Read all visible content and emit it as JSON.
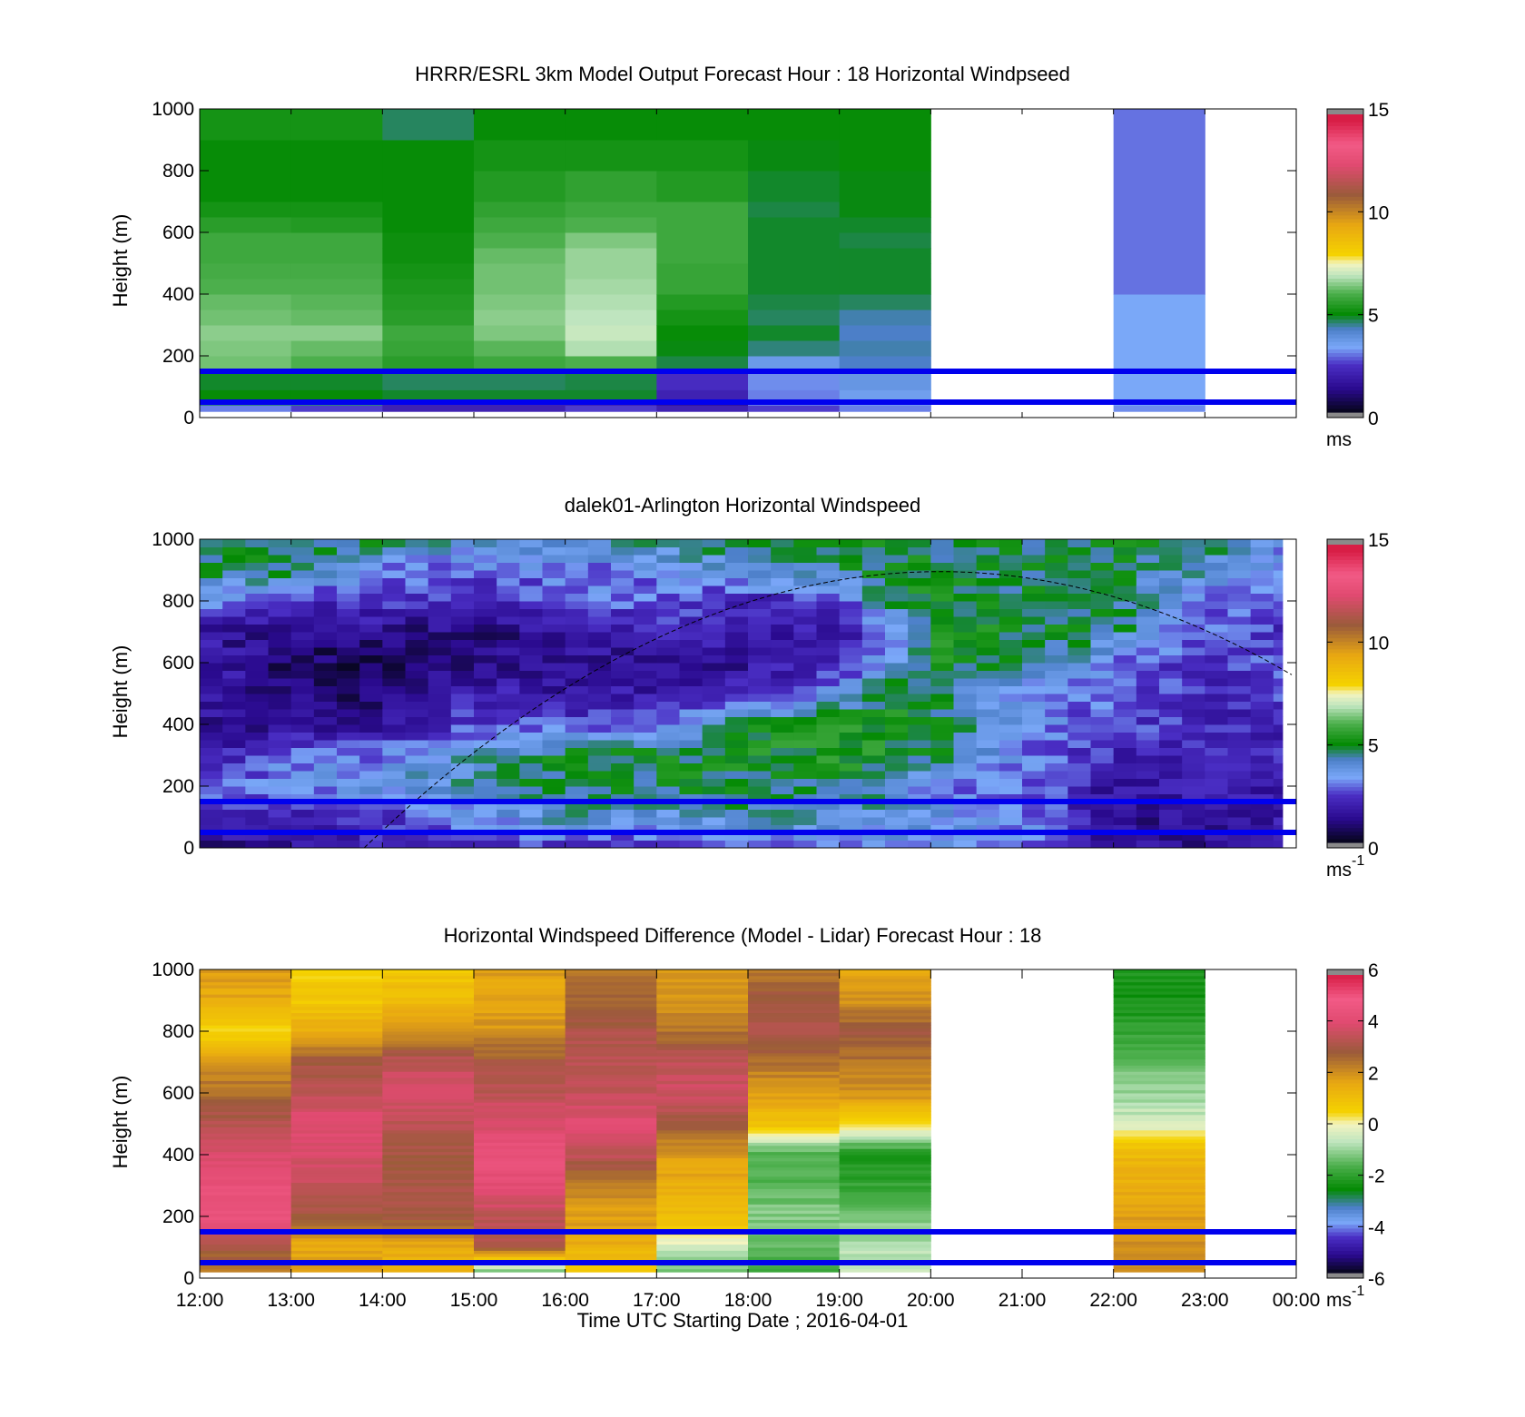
{
  "figure": {
    "xaxis_title": "Time UTC  Starting Date ; 2016-04-01",
    "x_tick_labels": [
      "12:00",
      "13:00",
      "14:00",
      "15:00",
      "16:00",
      "17:00",
      "18:00",
      "19:00",
      "20:00",
      "21:00",
      "22:00",
      "23:00",
      "00:00"
    ]
  },
  "chart_data": [
    {
      "type": "heatmap",
      "title": "HRRR/ESRL 3km Model Output   Forecast Hour : 18 Horizontal Windpseed",
      "ylabel": "Height (m)",
      "xlim_hours_utc": [
        12,
        24
      ],
      "ylim": [
        0,
        1000
      ],
      "y_ticks": [
        "0",
        "200",
        "400",
        "600",
        "800",
        "1000"
      ],
      "colorbar": {
        "range": [
          0,
          15
        ],
        "ticks": [
          "0",
          "5",
          "10",
          "15"
        ],
        "unit": "ms",
        "unit_sup": ""
      },
      "reference_lines_m": [
        50,
        150
      ],
      "columns": [
        {
          "hour": 12,
          "z_top": [
            40,
            60,
            90,
            150,
            200,
            250,
            300,
            350,
            400,
            450,
            500,
            550,
            600,
            650,
            700,
            800,
            900,
            1000
          ],
          "values": [
            3,
            4.5,
            5,
            4.8,
            6.3,
            6.4,
            6.5,
            6.3,
            6.2,
            6.0,
            5.9,
            5.8,
            5.8,
            5.5,
            5.2,
            5.0,
            5.0,
            5.2
          ]
        },
        {
          "hour": 13,
          "z_top": [
            40,
            60,
            90,
            150,
            200,
            250,
            300,
            350,
            400,
            450,
            500,
            550,
            600,
            650,
            700,
            800,
            900,
            1000
          ],
          "values": [
            2.5,
            4.5,
            5,
            4.8,
            6.0,
            6.2,
            6.5,
            6.2,
            6.1,
            6.0,
            5.9,
            5.8,
            5.8,
            5.4,
            5.2,
            5.0,
            5.0,
            5.2
          ]
        },
        {
          "hour": 14,
          "z_top": [
            40,
            60,
            90,
            150,
            200,
            250,
            300,
            350,
            400,
            450,
            500,
            550,
            600,
            650,
            700,
            800,
            900,
            1000
          ],
          "values": [
            2,
            2,
            4.8,
            4.6,
            5.5,
            5.7,
            5.8,
            5.5,
            5.4,
            5.3,
            5.2,
            5.1,
            5.1,
            5.0,
            5.0,
            5.0,
            5.0,
            4.6
          ]
        },
        {
          "hour": 15,
          "z_top": [
            40,
            60,
            90,
            150,
            200,
            250,
            300,
            350,
            400,
            450,
            500,
            550,
            600,
            650,
            700,
            800,
            900,
            1000
          ],
          "values": [
            2,
            2,
            4.8,
            4.6,
            5.8,
            6.1,
            6.4,
            6.5,
            6.4,
            6.3,
            6.3,
            6.2,
            6.0,
            5.8,
            5.6,
            5.4,
            5.2,
            5.0
          ]
        },
        {
          "hour": 16,
          "z_top": [
            40,
            60,
            90,
            150,
            200,
            250,
            300,
            350,
            400,
            450,
            500,
            550,
            600,
            650,
            700,
            800,
            900,
            1000
          ],
          "values": [
            2.5,
            2,
            4.8,
            4.7,
            6.0,
            6.8,
            7.0,
            6.9,
            6.8,
            6.7,
            6.6,
            6.6,
            6.4,
            6.0,
            5.8,
            5.6,
            5.2,
            5.0
          ]
        },
        {
          "hour": 17,
          "z_top": [
            40,
            60,
            90,
            150,
            200,
            250,
            300,
            350,
            400,
            450,
            500,
            550,
            600,
            650,
            700,
            800,
            900,
            1000
          ],
          "values": [
            2,
            1.5,
            2,
            2.3,
            4.7,
            4.9,
            5.0,
            5.2,
            5.4,
            5.7,
            5.7,
            5.8,
            5.8,
            5.8,
            5.8,
            5.4,
            5.2,
            5.0
          ]
        },
        {
          "hour": 18,
          "z_top": [
            40,
            60,
            90,
            150,
            200,
            250,
            300,
            350,
            400,
            450,
            500,
            550,
            600,
            650,
            700,
            800,
            900,
            1000
          ],
          "values": [
            2.5,
            3,
            3,
            3.1,
            3.6,
            4.5,
            4.8,
            4.6,
            4.7,
            4.8,
            4.8,
            4.8,
            4.8,
            4.8,
            4.7,
            4.8,
            4.9,
            5.0
          ]
        },
        {
          "hour": 19,
          "z_top": [
            40,
            60,
            90,
            150,
            200,
            250,
            300,
            350,
            400,
            450,
            500,
            550,
            600,
            650,
            700,
            800,
            900,
            1000
          ],
          "values": [
            3,
            3.2,
            3.5,
            3.7,
            4.2,
            4.3,
            4.2,
            4.3,
            4.6,
            4.8,
            4.8,
            4.8,
            4.7,
            4.8,
            4.9,
            4.9,
            5.0,
            5.0
          ]
        },
        {
          "hour": 22,
          "z_top": [
            40,
            400,
            1000
          ],
          "values": [
            3.1,
            3.3,
            2.9
          ]
        }
      ]
    },
    {
      "type": "heatmap",
      "title": "dalek01-Arlington  Horizontal Windspeed",
      "ylabel": "Height (m)",
      "xlim_hours_utc": [
        12,
        24
      ],
      "ylim": [
        0,
        1000
      ],
      "y_ticks": [
        "0",
        "200",
        "400",
        "600",
        "800",
        "1000"
      ],
      "colorbar": {
        "range": [
          0,
          15
        ],
        "ticks": [
          "0",
          "5",
          "10",
          "15"
        ],
        "unit": "ms",
        "unit_sup": "-1"
      },
      "reference_lines_m": [
        50,
        150
      ],
      "data_end_hour_utc": 23.85,
      "overlay_curve": {
        "style": "dashed",
        "peak_hour_utc": 20.1,
        "peak_height_m": 895,
        "zero_hour_utc": 13.8,
        "end_height_m": 500
      },
      "profiles": [
        {
          "hour": 12.0,
          "z": [
            0,
            100,
            200,
            300,
            400,
            500,
            600,
            700,
            800,
            900,
            1000
          ],
          "v": [
            1.0,
            2.0,
            2.8,
            1.5,
            1.5,
            1.8,
            2.0,
            1.6,
            3.6,
            4.6,
            4.8
          ]
        },
        {
          "hour": 13.0,
          "z": [
            0,
            100,
            200,
            300,
            400,
            500,
            600,
            700,
            800,
            900,
            1000
          ],
          "v": [
            1.5,
            2.0,
            3.0,
            3.2,
            1.2,
            1.0,
            0.8,
            1.2,
            2.2,
            4.6,
            5.0
          ]
        },
        {
          "hour": 14.0,
          "z": [
            0,
            100,
            200,
            300,
            400,
            500,
            600,
            700,
            800,
            900,
            1000
          ],
          "v": [
            2.0,
            2.3,
            3.8,
            3.0,
            1.5,
            0.8,
            0.6,
            1.2,
            2.5,
            3.0,
            4.8
          ]
        },
        {
          "hour": 15.0,
          "z": [
            0,
            100,
            200,
            300,
            400,
            500,
            600,
            700,
            800,
            900,
            1000
          ],
          "v": [
            2.2,
            3.2,
            4.3,
            4.0,
            2.5,
            2.0,
            1.2,
            1.0,
            2.0,
            2.8,
            3.8
          ]
        },
        {
          "hour": 16.0,
          "z": [
            0,
            100,
            200,
            300,
            400,
            500,
            600,
            700,
            800,
            900,
            1000
          ],
          "v": [
            2.4,
            4.2,
            4.8,
            4.8,
            2.6,
            1.5,
            1.2,
            1.5,
            2.8,
            3.0,
            4.0
          ]
        },
        {
          "hour": 17.0,
          "z": [
            0,
            100,
            200,
            300,
            400,
            500,
            600,
            700,
            800,
            900,
            1000
          ],
          "v": [
            2.2,
            3.5,
            4.6,
            4.9,
            3.0,
            1.8,
            1.5,
            2.0,
            2.8,
            3.0,
            4.5
          ]
        },
        {
          "hour": 18.0,
          "z": [
            0,
            100,
            200,
            300,
            400,
            500,
            600,
            700,
            800,
            900,
            1000
          ],
          "v": [
            3.0,
            4.5,
            4.8,
            5.0,
            5.0,
            2.0,
            1.5,
            1.8,
            2.0,
            4.0,
            5.0
          ]
        },
        {
          "hour": 19.0,
          "z": [
            0,
            100,
            200,
            300,
            400,
            500,
            600,
            700,
            800,
            900,
            1000
          ],
          "v": [
            3.0,
            3.8,
            4.5,
            5.2,
            5.2,
            3.5,
            2.0,
            1.8,
            2.5,
            4.6,
            4.8
          ]
        },
        {
          "hour": 19.5,
          "z": [
            0,
            100,
            200,
            300,
            400,
            500,
            600,
            700,
            800,
            900,
            1000
          ],
          "v": [
            3.2,
            3.6,
            4.8,
            5.0,
            5.2,
            4.8,
            3.5,
            2.5,
            4.8,
            5.0,
            4.8
          ]
        },
        {
          "hour": 20.0,
          "z": [
            0,
            100,
            200,
            300,
            400,
            500,
            600,
            700,
            800,
            900,
            1000
          ],
          "v": [
            3.5,
            3.8,
            3.0,
            4.8,
            5.0,
            5.0,
            5.0,
            5.0,
            4.9,
            4.8,
            4.7
          ]
        },
        {
          "hour": 21.0,
          "z": [
            0,
            100,
            200,
            300,
            400,
            500,
            600,
            700,
            800,
            900,
            1000
          ],
          "v": [
            3.2,
            3.2,
            3.0,
            3.0,
            3.5,
            3.2,
            4.8,
            4.9,
            4.8,
            4.6,
            4.8
          ]
        },
        {
          "hour": 22.0,
          "z": [
            0,
            100,
            200,
            300,
            400,
            500,
            600,
            700,
            800,
            900,
            1000
          ],
          "v": [
            1.5,
            1.2,
            1.5,
            2.0,
            2.5,
            2.8,
            3.0,
            4.6,
            4.8,
            4.6,
            4.8
          ]
        },
        {
          "hour": 23.0,
          "z": [
            0,
            100,
            200,
            300,
            400,
            500,
            600,
            700,
            800,
            900,
            1000
          ],
          "v": [
            1.2,
            1.5,
            1.8,
            2.0,
            2.2,
            2.0,
            2.2,
            2.6,
            3.0,
            4.0,
            4.8
          ]
        },
        {
          "hour": 23.85,
          "z": [
            0,
            100,
            200,
            300,
            400,
            500,
            600,
            700,
            800,
            900,
            1000
          ],
          "v": [
            1.6,
            1.8,
            1.8,
            2.2,
            2.0,
            2.4,
            2.6,
            2.2,
            3.0,
            3.2,
            3.4
          ]
        }
      ]
    },
    {
      "type": "heatmap",
      "title": "Horizontal Windspeed Difference (Model - Lidar) Forecast Hour : 18",
      "ylabel": "Height (m)",
      "xlim_hours_utc": [
        12,
        24
      ],
      "ylim": [
        0,
        1000
      ],
      "y_ticks": [
        "0",
        "200",
        "400",
        "600",
        "800",
        "1000"
      ],
      "colorbar": {
        "range": [
          -6,
          6
        ],
        "ticks": [
          "-6",
          "-4",
          "-2",
          "0",
          "2",
          "4",
          "6"
        ],
        "unit": "ms",
        "unit_sup": "-1"
      },
      "reference_lines_m": [
        50,
        150
      ],
      "profiles": [
        {
          "hour": 12,
          "z": [
            20,
            100,
            200,
            300,
            400,
            500,
            600,
            700,
            800,
            900,
            1000
          ],
          "v": [
            2.5,
            3.0,
            4.6,
            4.4,
            4.0,
            3.4,
            2.6,
            2.0,
            0.5,
            1.6,
            1.8
          ]
        },
        {
          "hour": 13,
          "z": [
            20,
            100,
            200,
            300,
            400,
            500,
            600,
            700,
            800,
            900,
            1000
          ],
          "v": [
            2.0,
            1.5,
            3.0,
            3.5,
            4.0,
            4.2,
            3.5,
            3.0,
            1.5,
            0.8,
            0.6
          ]
        },
        {
          "hour": 14,
          "z": [
            20,
            100,
            200,
            300,
            400,
            500,
            600,
            700,
            800,
            900,
            1000
          ],
          "v": [
            1.5,
            1.5,
            3.0,
            3.2,
            3.0,
            3.4,
            4.0,
            3.5,
            2.0,
            1.2,
            0.8
          ]
        },
        {
          "hour": 15,
          "z": [
            20,
            100,
            200,
            300,
            400,
            500,
            600,
            700,
            800,
            900,
            1000
          ],
          "v": [
            -1.5,
            3.0,
            3.5,
            4.2,
            4.5,
            4.0,
            3.5,
            3.0,
            2.0,
            1.6,
            1.8
          ]
        },
        {
          "hour": 16,
          "z": [
            20,
            100,
            200,
            300,
            400,
            500,
            600,
            700,
            800,
            900,
            1000
          ],
          "v": [
            0.5,
            1.5,
            1.8,
            2.2,
            3.5,
            4.2,
            3.6,
            3.4,
            3.2,
            2.8,
            2.4
          ]
        },
        {
          "hour": 17,
          "z": [
            20,
            100,
            200,
            300,
            400,
            500,
            600,
            700,
            800,
            900,
            1000
          ],
          "v": [
            -1.5,
            -0.5,
            1.2,
            1.5,
            1.8,
            3.0,
            3.8,
            3.5,
            2.5,
            2.0,
            2.0
          ]
        },
        {
          "hour": 18,
          "z": [
            20,
            100,
            200,
            300,
            400,
            500,
            600,
            700,
            800,
            900,
            1000
          ],
          "v": [
            -2.0,
            -1.5,
            -1.2,
            -1.5,
            -1.8,
            1.0,
            1.8,
            2.5,
            3.4,
            3.0,
            2.5
          ]
        },
        {
          "hour": 19,
          "z": [
            20,
            100,
            200,
            300,
            400,
            500,
            600,
            700,
            800,
            900,
            1000
          ],
          "v": [
            -0.5,
            -0.8,
            -1.2,
            -2.0,
            -2.5,
            0.5,
            2.0,
            2.5,
            3.0,
            2.0,
            1.5
          ]
        },
        {
          "hour": 22,
          "z": [
            20,
            100,
            200,
            300,
            400,
            450,
            475,
            500,
            600,
            700,
            800,
            900,
            1000
          ],
          "v": [
            2.0,
            2.0,
            1.8,
            1.5,
            1.2,
            0.5,
            0.0,
            -0.5,
            -1.0,
            -1.5,
            -2.0,
            -2.4,
            -2.4
          ]
        }
      ]
    }
  ]
}
